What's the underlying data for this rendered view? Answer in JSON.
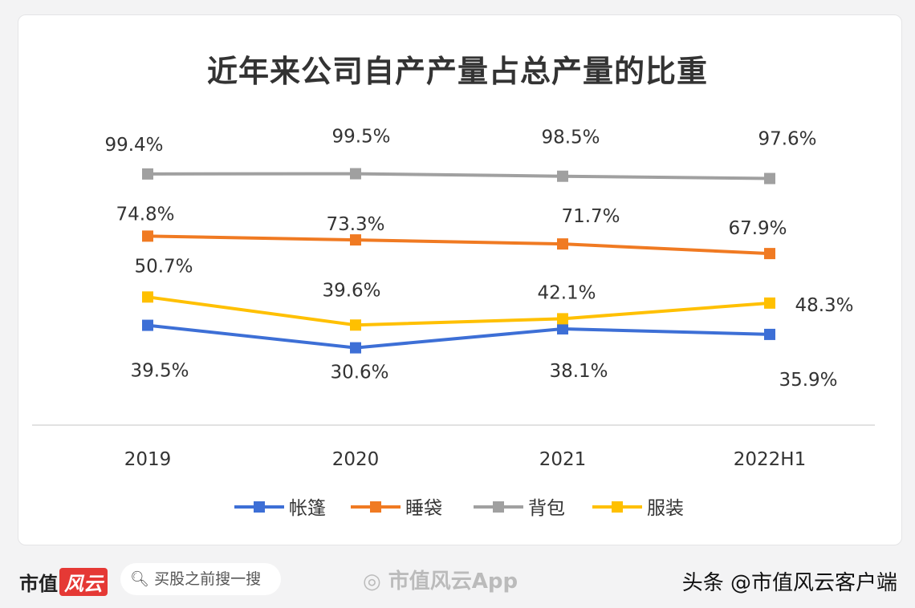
{
  "chart_data": {
    "type": "line",
    "title": "近年来公司自产产量占总产量的比重",
    "categories": [
      "2019",
      "2020",
      "2021",
      "2022H1"
    ],
    "ylim": [
      0,
      101
    ],
    "grid": false,
    "legend_placement": "bottom",
    "series": [
      {
        "name": "帐篷",
        "color": "#3d6fd6",
        "values": [
          39.5,
          30.6,
          38.1,
          35.9
        ],
        "labels": [
          "39.5%",
          "30.6%",
          "38.1%",
          "35.9%"
        ]
      },
      {
        "name": "睡袋",
        "color": "#f07a22",
        "values": [
          74.8,
          73.3,
          71.7,
          67.9
        ],
        "labels": [
          "74.8%",
          "73.3%",
          "71.7%",
          "67.9%"
        ]
      },
      {
        "name": "背包",
        "color": "#a0a0a0",
        "values": [
          99.4,
          99.5,
          98.5,
          97.6
        ],
        "labels": [
          "99.4%",
          "99.5%",
          "98.5%",
          "97.6%"
        ]
      },
      {
        "name": "服装",
        "color": "#ffc000",
        "values": [
          50.7,
          39.6,
          42.1,
          48.3
        ],
        "labels": [
          "50.7%",
          "39.6%",
          "42.1%",
          "48.3%"
        ]
      }
    ]
  },
  "footer": {
    "brand": "市值",
    "brand_logo": "风云",
    "search_placeholder": "买股之前搜一搜",
    "search_icon": "search-icon",
    "weibo_icon": "weibo-icon",
    "weibo_text": "市值风云App",
    "credit": "头条 @市值风云客户端"
  }
}
